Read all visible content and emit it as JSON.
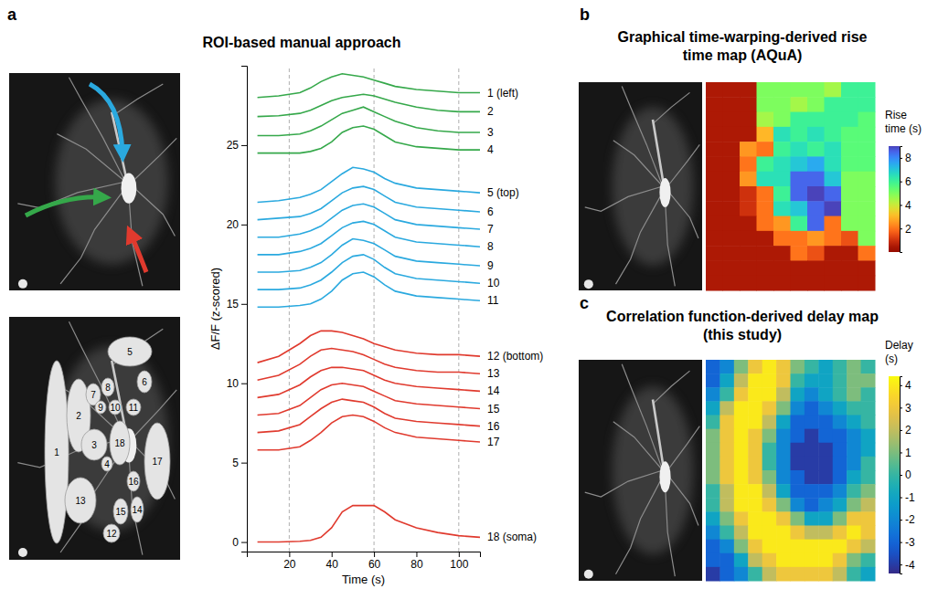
{
  "chart_data": [
    {
      "panel": "a",
      "type": "line",
      "title": "ROI-based manual approach",
      "x_label": "Time (s)",
      "y_label": "ΔF/F (z-scored)",
      "roi_labels": [
        "1",
        "2",
        "3",
        "4",
        "5",
        "6",
        "7",
        "8",
        "9",
        "10",
        "11",
        "12",
        "13",
        "14",
        "15",
        "16",
        "17",
        "18"
      ],
      "x": [
        5,
        15,
        25,
        30,
        35,
        40,
        45,
        50,
        55,
        60,
        65,
        70,
        80,
        90,
        100,
        110
      ],
      "xlim": [
        0,
        110
      ],
      "xticks": [
        20,
        40,
        60,
        80,
        100
      ],
      "ylim": [
        -0.6,
        30
      ],
      "yticks": [
        0,
        5,
        10,
        15,
        20,
        25
      ],
      "vlines": [
        20,
        60,
        100
      ],
      "series": [
        {
          "name": "1 (left)",
          "color": "#35a84a",
          "values": [
            28.0,
            28.1,
            28.3,
            28.6,
            29.0,
            29.3,
            29.5,
            29.4,
            29.3,
            29.1,
            28.9,
            28.7,
            28.5,
            28.4,
            28.3,
            28.3
          ]
        },
        {
          "name": "2",
          "color": "#35a84a",
          "values": [
            26.8,
            26.85,
            27.0,
            27.2,
            27.5,
            27.8,
            28.0,
            28.1,
            28.2,
            28.1,
            27.9,
            27.7,
            27.4,
            27.2,
            27.1,
            27.1
          ]
        },
        {
          "name": "3",
          "color": "#35a84a",
          "values": [
            25.6,
            25.6,
            25.7,
            25.9,
            26.2,
            26.6,
            27.0,
            27.2,
            27.4,
            27.1,
            26.8,
            26.5,
            26.1,
            25.9,
            25.8,
            25.8
          ]
        },
        {
          "name": "4",
          "color": "#35a84a",
          "values": [
            24.5,
            24.5,
            24.5,
            24.6,
            24.8,
            25.2,
            25.8,
            26.1,
            26.2,
            26.0,
            25.6,
            25.2,
            24.9,
            24.8,
            24.7,
            24.7
          ]
        },
        {
          "name": "5 (top)",
          "color": "#2aa9df",
          "values": [
            21.4,
            21.5,
            21.7,
            21.9,
            22.2,
            22.7,
            23.2,
            23.6,
            23.5,
            23.3,
            22.9,
            22.6,
            22.3,
            22.2,
            22.1,
            22.0
          ]
        },
        {
          "name": "6",
          "color": "#2aa9df",
          "values": [
            20.3,
            20.4,
            20.5,
            20.7,
            21.0,
            21.5,
            22.0,
            22.3,
            22.4,
            22.2,
            21.8,
            21.4,
            21.1,
            21.0,
            20.9,
            20.8
          ]
        },
        {
          "name": "7",
          "color": "#2aa9df",
          "values": [
            19.2,
            19.2,
            19.4,
            19.6,
            19.9,
            20.4,
            20.9,
            21.2,
            21.3,
            21.1,
            20.7,
            20.3,
            20.0,
            19.9,
            19.8,
            19.7
          ]
        },
        {
          "name": "8",
          "color": "#2aa9df",
          "values": [
            18.1,
            18.1,
            18.3,
            18.5,
            18.8,
            19.3,
            19.8,
            20.1,
            20.2,
            20.0,
            19.6,
            19.2,
            18.9,
            18.8,
            18.7,
            18.6
          ]
        },
        {
          "name": "9",
          "color": "#2aa9df",
          "values": [
            17.0,
            17.0,
            17.1,
            17.3,
            17.6,
            18.1,
            18.7,
            19.1,
            19.0,
            18.8,
            18.4,
            18.0,
            17.7,
            17.6,
            17.5,
            17.4
          ]
        },
        {
          "name": "10",
          "color": "#2aa9df",
          "values": [
            15.9,
            15.9,
            16.0,
            16.2,
            16.5,
            17.0,
            17.6,
            18.0,
            18.1,
            17.8,
            17.3,
            16.9,
            16.6,
            16.5,
            16.4,
            16.3
          ]
        },
        {
          "name": "11",
          "color": "#2aa9df",
          "values": [
            14.8,
            14.8,
            14.9,
            15.0,
            15.3,
            15.8,
            16.5,
            16.9,
            17.0,
            16.7,
            16.2,
            15.8,
            15.5,
            15.4,
            15.3,
            15.2
          ]
        },
        {
          "name": "12 (bottom)",
          "color": "#e03a2e",
          "values": [
            11.3,
            11.7,
            12.5,
            13.0,
            13.3,
            13.3,
            13.2,
            13.0,
            12.8,
            12.5,
            12.3,
            12.1,
            11.9,
            11.8,
            11.8,
            11.7
          ]
        },
        {
          "name": "13",
          "color": "#e03a2e",
          "values": [
            10.2,
            10.5,
            11.2,
            11.7,
            12.1,
            12.2,
            12.1,
            12.0,
            11.8,
            11.5,
            11.2,
            11.0,
            10.8,
            10.7,
            10.7,
            10.6
          ]
        },
        {
          "name": "14",
          "color": "#e03a2e",
          "values": [
            9.1,
            9.3,
            9.9,
            10.4,
            10.8,
            11.0,
            11.0,
            10.9,
            10.8,
            10.5,
            10.2,
            10.0,
            9.8,
            9.7,
            9.6,
            9.5
          ]
        },
        {
          "name": "15",
          "color": "#e03a2e",
          "values": [
            8.0,
            8.1,
            8.6,
            9.1,
            9.6,
            9.9,
            10.0,
            9.9,
            9.8,
            9.5,
            9.2,
            8.9,
            8.7,
            8.6,
            8.5,
            8.4
          ]
        },
        {
          "name": "16",
          "color": "#e03a2e",
          "values": [
            6.9,
            7.0,
            7.4,
            7.9,
            8.4,
            8.8,
            9.0,
            8.9,
            8.8,
            8.5,
            8.1,
            7.8,
            7.6,
            7.5,
            7.4,
            7.3
          ]
        },
        {
          "name": "17",
          "color": "#e03a2e",
          "values": [
            5.8,
            5.8,
            6.0,
            6.4,
            6.9,
            7.5,
            7.9,
            8.0,
            7.9,
            7.6,
            7.2,
            6.9,
            6.6,
            6.5,
            6.4,
            6.3
          ]
        },
        {
          "name": "18 (soma)",
          "color": "#e03a2e",
          "values": [
            0,
            0,
            0.05,
            0.1,
            0.3,
            0.9,
            1.9,
            2.3,
            2.3,
            2.3,
            1.9,
            1.4,
            0.9,
            0.6,
            0.4,
            0.3
          ]
        }
      ]
    },
    {
      "panel": "b",
      "type": "heatmap",
      "title": "Graphical time-warping-derived rise time map (AQuA)",
      "colorbar_label": "Rise time (s)",
      "colorbar_range": [
        0,
        9
      ],
      "colorbar_ticks": [
        2,
        4,
        6,
        8
      ],
      "cells": [
        [
          0.5,
          0.5,
          0.5,
          5,
          5,
          5,
          5,
          4.5,
          6,
          6
        ],
        [
          0.5,
          0.5,
          0.5,
          5,
          5,
          4.5,
          5,
          6,
          6,
          6
        ],
        [
          0.5,
          0.5,
          0.5,
          4.5,
          5,
          6,
          6,
          6,
          6,
          5.5
        ],
        [
          0.5,
          0.5,
          0.5,
          3,
          6.5,
          6,
          6.5,
          6,
          5.5,
          5.5
        ],
        [
          0.5,
          0.5,
          2.5,
          2,
          6,
          6.5,
          6,
          6.5,
          5.5,
          5.5
        ],
        [
          0.5,
          0.5,
          2,
          6,
          6.5,
          7,
          7.5,
          6.5,
          5.5,
          5.5
        ],
        [
          0.5,
          0.5,
          2.5,
          6.5,
          6.5,
          8.5,
          8.5,
          7,
          5,
          5
        ],
        [
          0.5,
          0.5,
          1,
          2,
          6,
          8.5,
          9,
          8.5,
          5,
          5
        ],
        [
          0.5,
          0.5,
          1,
          2,
          6.5,
          7,
          8.5,
          9,
          5,
          5
        ],
        [
          0.5,
          0.5,
          0.5,
          2,
          2.5,
          6,
          8.5,
          2,
          5,
          5
        ],
        [
          0.5,
          0.5,
          0.5,
          0.5,
          2,
          2,
          2.5,
          2,
          1.5,
          5
        ],
        [
          0.5,
          0.5,
          0.5,
          0.5,
          0.5,
          2,
          1.5,
          0.5,
          0.5,
          2
        ],
        [
          0.5,
          0.5,
          0.5,
          0.5,
          0.5,
          0.5,
          0.5,
          0.5,
          0.5,
          0.5
        ],
        [
          0.5,
          0.5,
          0.5,
          0.5,
          0.5,
          0.5,
          0.5,
          0.5,
          0.5,
          0.5
        ]
      ]
    },
    {
      "panel": "c",
      "type": "heatmap",
      "title": "Correlation function-derived delay map (this study)",
      "colorbar_label": "Delay (s)",
      "colorbar_range": [
        -4.4,
        4.4
      ],
      "colorbar_ticks": [
        -4,
        -3,
        -2,
        -1,
        0,
        1,
        2,
        3,
        4
      ],
      "cells": [
        [
          -3,
          -2,
          1,
          3,
          4,
          3,
          1,
          0,
          -1,
          0,
          1,
          0
        ],
        [
          -3,
          -1,
          2,
          4,
          4,
          3,
          0,
          -1,
          -1,
          0,
          1,
          1
        ],
        [
          -2,
          0,
          3,
          4,
          4,
          2,
          -1,
          -2,
          -1,
          0,
          1,
          0
        ],
        [
          -1,
          2,
          4,
          4,
          3,
          1,
          -2,
          -3,
          -2,
          -1,
          0,
          0
        ],
        [
          0,
          3,
          4,
          4,
          2,
          -1,
          -3,
          -3,
          -3,
          -2,
          -1,
          0
        ],
        [
          1,
          3,
          4,
          3,
          1,
          -2,
          -3,
          -4,
          -3,
          -3,
          -2,
          -1
        ],
        [
          1,
          3,
          4,
          3,
          0,
          -2,
          -4,
          -4,
          -4,
          -3,
          -2,
          -1
        ],
        [
          1,
          3,
          4,
          3,
          0,
          -2,
          -4,
          -4,
          -4,
          -3,
          -2,
          0
        ],
        [
          1,
          3,
          4,
          3,
          1,
          -2,
          -3,
          -4,
          -4,
          -3,
          -1,
          0
        ],
        [
          0,
          2,
          4,
          4,
          2,
          -1,
          -3,
          -3,
          -3,
          -2,
          0,
          1
        ],
        [
          0,
          2,
          4,
          4,
          3,
          1,
          -2,
          -3,
          -2,
          -1,
          1,
          2
        ],
        [
          -1,
          1,
          3,
          4,
          4,
          3,
          1,
          -1,
          -1,
          1,
          3,
          3
        ],
        [
          -2,
          0,
          2,
          4,
          4,
          4,
          3,
          2,
          2,
          3,
          4,
          3
        ],
        [
          -3,
          -2,
          1,
          3,
          4,
          4,
          4,
          4,
          4,
          4,
          3,
          2
        ],
        [
          -3,
          -3,
          -1,
          2,
          3,
          4,
          4,
          4,
          4,
          3,
          1,
          0
        ],
        [
          -4,
          -3,
          -2,
          0,
          2,
          3,
          3,
          3,
          3,
          2,
          0,
          -1
        ]
      ]
    }
  ]
}
